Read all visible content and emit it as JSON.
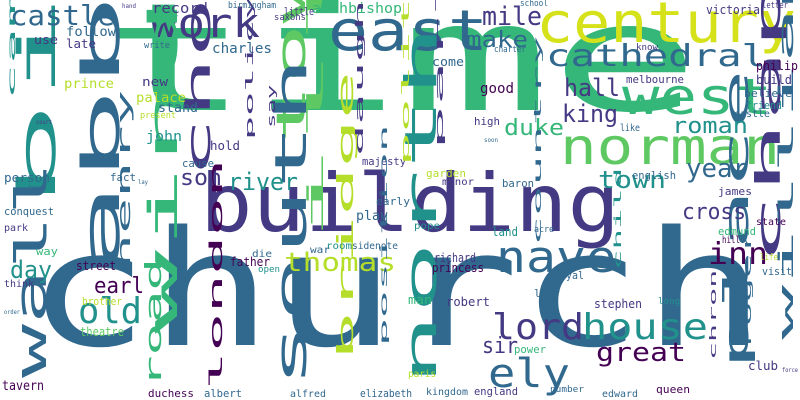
{
  "words": [
    {
      "text": "time",
      "color": "#35b779"
    },
    {
      "text": "church",
      "color": "#31688e"
    },
    {
      "text": "building",
      "color": "#443983"
    },
    {
      "text": "century",
      "color": "#d5e21a"
    },
    {
      "text": "east",
      "color": "#31688e"
    },
    {
      "text": "norman",
      "color": "#5ec962"
    },
    {
      "text": "west",
      "color": "#35b779"
    },
    {
      "text": "cathedral",
      "color": "#31688e"
    },
    {
      "text": "bishop",
      "color": "#21918c"
    },
    {
      "text": "abbot",
      "color": "#31688e"
    },
    {
      "text": "work",
      "color": "#443983"
    },
    {
      "text": "castle",
      "color": "#31688e"
    },
    {
      "text": "choir",
      "color": "#443983"
    },
    {
      "text": "tower",
      "color": "#5ec962"
    },
    {
      "text": "chapel",
      "color": "#443983"
    },
    {
      "text": "nave",
      "color": "#31688e"
    },
    {
      "text": "house",
      "color": "#21918c"
    },
    {
      "text": "lord",
      "color": "#443983"
    },
    {
      "text": "ely",
      "color": "#31688e"
    },
    {
      "text": "south",
      "color": "#31688e"
    },
    {
      "text": "north",
      "color": "#21918c"
    },
    {
      "text": "window",
      "color": "#35b779"
    },
    {
      "text": "wall",
      "color": "#31688e"
    },
    {
      "text": "old",
      "color": "#21918c"
    },
    {
      "text": "great",
      "color": "#440154"
    },
    {
      "text": "place",
      "color": "#31688e"
    },
    {
      "text": "inn",
      "color": "#440154"
    },
    {
      "text": "thomas",
      "color": "#b5de2b"
    },
    {
      "text": "roman",
      "color": "#21918c"
    },
    {
      "text": "duke",
      "color": "#35b779"
    },
    {
      "text": "year",
      "color": "#31688e"
    },
    {
      "text": "king",
      "color": "#443983"
    },
    {
      "text": "hall",
      "color": "#443983"
    },
    {
      "text": "mile",
      "color": "#443983"
    },
    {
      "text": "make",
      "color": "#31688e"
    },
    {
      "text": "river",
      "color": "#21918c"
    },
    {
      "text": "son",
      "color": "#443983"
    },
    {
      "text": "illustration",
      "color": "#5ec962"
    },
    {
      "text": "town",
      "color": "#21918c"
    },
    {
      "text": "day",
      "color": "#21918c"
    },
    {
      "text": "cross",
      "color": "#443983"
    },
    {
      "text": "earl",
      "color": "#440154"
    },
    {
      "text": "road",
      "color": "#35b779"
    },
    {
      "text": "bridge",
      "color": "#b5de2b"
    },
    {
      "text": "william",
      "color": "#31688e"
    },
    {
      "text": "henry",
      "color": "#31688e"
    },
    {
      "text": "sir",
      "color": "#443983"
    },
    {
      "text": "london",
      "color": "#440154"
    },
    {
      "text": "archbishop",
      "color": "#35b779"
    },
    {
      "text": "charles",
      "color": "#31688e"
    },
    {
      "text": "record",
      "color": "#443983"
    },
    {
      "text": "follow",
      "color": "#31688e"
    },
    {
      "text": "late",
      "color": "#443983"
    },
    {
      "text": "use",
      "color": "#443983"
    },
    {
      "text": "cambridge",
      "color": "#21918c"
    },
    {
      "text": "prince",
      "color": "#b5de2b"
    },
    {
      "text": "new",
      "color": "#443983"
    },
    {
      "text": "palace",
      "color": "#b5de2b"
    },
    {
      "text": "stand",
      "color": "#31688e"
    },
    {
      "text": "john",
      "color": "#21918c"
    },
    {
      "text": "good",
      "color": "#440154"
    },
    {
      "text": "come",
      "color": "#31688e"
    },
    {
      "text": "parliament",
      "color": "#443983"
    },
    {
      "text": "victoria",
      "color": "#443983"
    },
    {
      "text": "philip",
      "color": "#440154"
    },
    {
      "text": "build",
      "color": "#443983"
    },
    {
      "text": "melbourne",
      "color": "#443983"
    },
    {
      "text": "believe",
      "color": "#31688e"
    },
    {
      "text": "friend",
      "color": "#21918c"
    },
    {
      "text": "castle",
      "color": "#31688e"
    },
    {
      "text": "hold",
      "color": "#443983"
    },
    {
      "text": "cause",
      "color": "#31688e"
    },
    {
      "text": "policy",
      "color": "#443983"
    },
    {
      "text": "say",
      "color": "#443983"
    },
    {
      "text": "person",
      "color": "#31688e"
    },
    {
      "text": "fact",
      "color": "#31688e"
    },
    {
      "text": "conquest",
      "color": "#31688e"
    },
    {
      "text": "park",
      "color": "#443983"
    },
    {
      "text": "way",
      "color": "#35b779"
    },
    {
      "text": "majesty",
      "color": "#443983"
    },
    {
      "text": "early",
      "color": "#31688e"
    },
    {
      "text": "play",
      "color": "#31688e"
    },
    {
      "text": "garden",
      "color": "#b5de2b"
    },
    {
      "text": "english",
      "color": "#31688e"
    },
    {
      "text": "james",
      "color": "#443983"
    },
    {
      "text": "edmund",
      "color": "#35b779"
    },
    {
      "text": "visit",
      "color": "#31688e"
    },
    {
      "text": "state",
      "color": "#440154"
    },
    {
      "text": "hill",
      "color": "#440154"
    },
    {
      "text": "street",
      "color": "#440154"
    },
    {
      "text": "father",
      "color": "#440154"
    },
    {
      "text": "richard",
      "color": "#443983"
    },
    {
      "text": "land",
      "color": "#21918c"
    },
    {
      "text": "princess",
      "color": "#440154"
    },
    {
      "text": "royal",
      "color": "#31688e"
    },
    {
      "text": "robert",
      "color": "#443983"
    },
    {
      "text": "stephen",
      "color": "#443983"
    },
    {
      "text": "man",
      "color": "#35b779"
    },
    {
      "text": "lady",
      "color": "#31688e"
    },
    {
      "text": "roger",
      "color": "#31688e"
    },
    {
      "text": "club",
      "color": "#443983"
    },
    {
      "text": "tavern",
      "color": "#440154"
    },
    {
      "text": "theatre",
      "color": "#5ec962"
    },
    {
      "text": "brother",
      "color": "#b5de2b"
    },
    {
      "text": "duchess",
      "color": "#440154"
    },
    {
      "text": "albert",
      "color": "#31688e"
    },
    {
      "text": "alfred",
      "color": "#31688e"
    },
    {
      "text": "elizabeth",
      "color": "#31688e"
    },
    {
      "text": "kingdom",
      "color": "#31688e"
    },
    {
      "text": "england",
      "color": "#443983"
    },
    {
      "text": "queen",
      "color": "#440154"
    },
    {
      "text": "edward",
      "color": "#31688e"
    },
    {
      "text": "number",
      "color": "#31688e"
    },
    {
      "text": "paris",
      "color": "#b5de2b"
    },
    {
      "text": "power",
      "color": "#35b779"
    },
    {
      "text": "position",
      "color": "#31688e"
    },
    {
      "text": "daughter",
      "color": "#443983"
    },
    {
      "text": "political",
      "color": "#b5de2b"
    },
    {
      "text": "high",
      "color": "#443983"
    },
    {
      "text": "manor",
      "color": "#443983"
    },
    {
      "text": "baron",
      "color": "#31688e"
    },
    {
      "text": "country",
      "color": "#31688e"
    },
    {
      "text": "child",
      "color": "#21918c"
    },
    {
      "text": "pope",
      "color": "#21918c"
    },
    {
      "text": "room",
      "color": "#21918c"
    },
    {
      "text": "sidenote",
      "color": "#31688e"
    },
    {
      "text": "war",
      "color": "#31688e"
    },
    {
      "text": "die",
      "color": "#31688e"
    },
    {
      "text": "open",
      "color": "#21918c"
    },
    {
      "text": "think",
      "color": "#443983"
    },
    {
      "text": "birmingham",
      "color": "#31688e"
    },
    {
      "text": "little",
      "color": "#443983"
    },
    {
      "text": "saxons",
      "color": "#443983"
    },
    {
      "text": "charter",
      "color": "#31688e"
    },
    {
      "text": "write",
      "color": "#31688e"
    },
    {
      "text": "school",
      "color": "#31688e"
    },
    {
      "text": "know",
      "color": "#443983"
    },
    {
      "text": "letter",
      "color": "#443983"
    },
    {
      "text": "like",
      "color": "#31688e"
    },
    {
      "text": "long",
      "color": "#21918c"
    },
    {
      "text": "life",
      "color": "#b5de2b"
    },
    {
      "text": "chron",
      "color": "#443983"
    },
    {
      "text": "acre",
      "color": "#31688e"
    },
    {
      "text": "court",
      "color": "#443983"
    },
    {
      "text": "soon",
      "color": "#31688e"
    },
    {
      "text": "present",
      "color": "#b5de2b"
    },
    {
      "text": "france",
      "color": "#31688e"
    },
    {
      "text": "lay",
      "color": "#31688e"
    },
    {
      "text": "hand",
      "color": "#443983"
    },
    {
      "text": "order",
      "color": "#31688e"
    },
    {
      "text": "force",
      "color": "#443983"
    }
  ]
}
